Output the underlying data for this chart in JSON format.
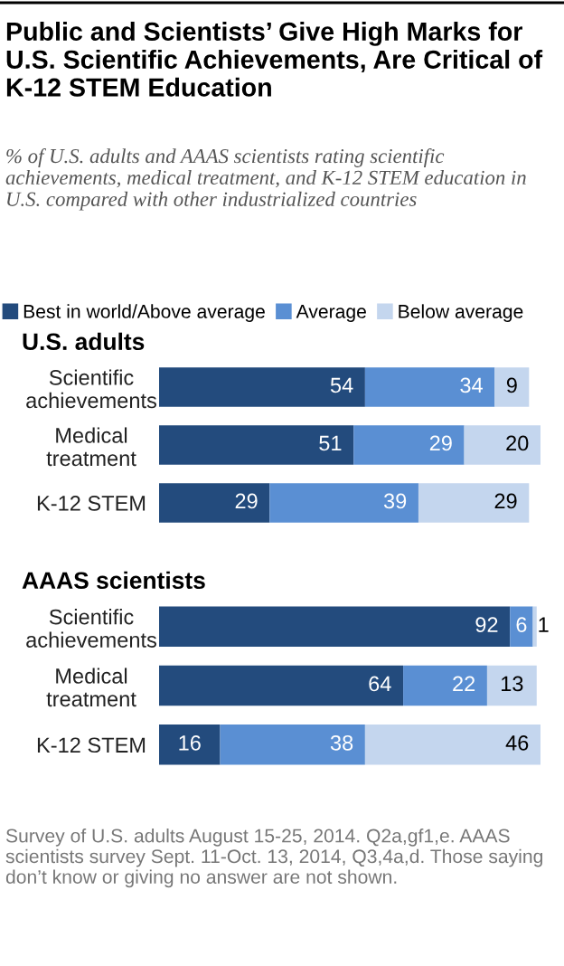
{
  "chart_data": [
    {
      "type": "other",
      "title": "Public and Scientists’ Give High Marks for U.S. Scientific Achievements, Are Critical of K-12 STEM Education",
      "subtitle": "% of U.S. adults and AAAS scientists rating scientific achievements, medical treatment, and K-12 STEM education in U.S. compared with other industrialized countries"
    },
    {
      "type": "bar",
      "orientation": "horizontal",
      "stacked": true,
      "data_labels": true,
      "legend": "top",
      "title": "U.S. adults",
      "tick_labels": "y",
      "categories": [
        "Scientific\nachievements",
        "Medical\ntreatment",
        "K-12 STEM"
      ],
      "series": [
        {
          "name": "Best in world/Above average",
          "color": "#234b7d",
          "values": [
            54,
            51,
            29
          ]
        },
        {
          "name": "Average",
          "color": "#5a8fd3",
          "values": [
            34,
            29,
            39
          ]
        },
        {
          "name": "Below average",
          "color": "#c4d6ee",
          "values": [
            9,
            20,
            29
          ]
        }
      ]
    },
    {
      "type": "bar",
      "orientation": "horizontal",
      "stacked": true,
      "data_labels": true,
      "title": "AAAS scientists",
      "tick_labels": "y",
      "categories": [
        "Scientific\nachievements",
        "Medical\ntreatment",
        "K-12 STEM"
      ],
      "series": [
        {
          "color": "#234b7d",
          "values": [
            92,
            64,
            16
          ]
        },
        {
          "color": "#5a8fd3",
          "values": [
            6,
            22,
            38
          ]
        },
        {
          "color": "#c4d6ee",
          "values": [
            1,
            13,
            46
          ]
        }
      ],
      "annotations": [
        "Survey of U.S. adults August 15-25, 2014. Q2a,gf1,e. AAAS scientists survey Sept. 11-Oct. 13, 2014, Q3,4a,d. Those saying don’t know or giving no answer are not shown."
      ]
    }
  ]
}
